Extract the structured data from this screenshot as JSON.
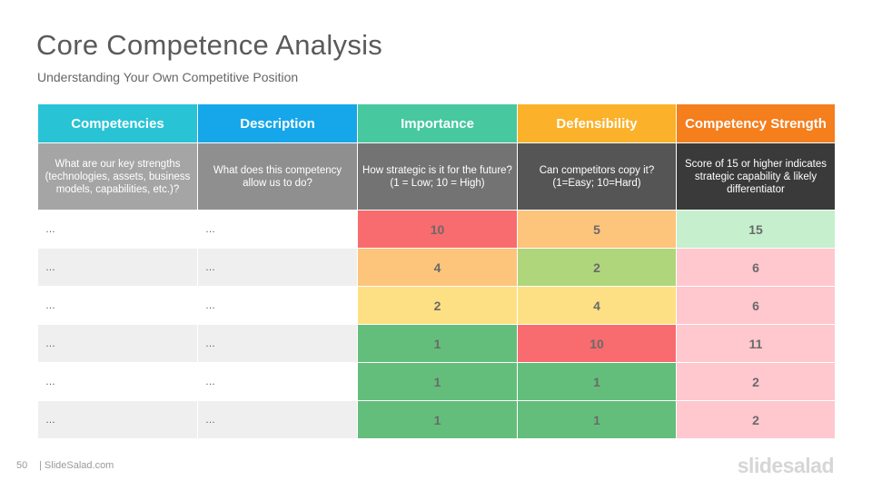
{
  "title": "Core Competence Analysis",
  "subtitle": "Understanding Your Own Competitive Position",
  "columns": [
    {
      "label": "Competencies",
      "color": "#29c3d6",
      "desc": "What are our key strengths (technologies, assets, business models, capabilities, etc.)?",
      "desc_color": "#a5a5a5"
    },
    {
      "label": "Description",
      "color": "#16a7ea",
      "desc": "What does this competency allow us to do?",
      "desc_color": "#8f8f8f"
    },
    {
      "label": "Importance",
      "color": "#47c89f",
      "desc": "How strategic is it for the future?\n(1 = Low; 10 = High)",
      "desc_color": "#737373"
    },
    {
      "label": "Defensibility",
      "color": "#fbb129",
      "desc": "Can competitors  copy it?\n(1=Easy; 10=Hard)",
      "desc_color": "#555555"
    },
    {
      "label": "Competency Strength",
      "color": "#f57e1d",
      "desc": "Score of 15 or higher indicates strategic capability & likely differentiator",
      "desc_color": "#3a3a3a"
    }
  ],
  "rows": [
    {
      "competency": "…",
      "description": "…",
      "importance": "10",
      "importance_color": "#f86b6e",
      "defensibility": "5",
      "defensibility_color": "#fdc47c",
      "strength": "15",
      "strength_color": "#c6efce"
    },
    {
      "competency": "…",
      "description": "…",
      "importance": "4",
      "importance_color": "#fdc47c",
      "defensibility": "2",
      "defensibility_color": "#b0d67c",
      "strength": "6",
      "strength_color": "#ffc7ce"
    },
    {
      "competency": "…",
      "description": "…",
      "importance": "2",
      "importance_color": "#fee084",
      "defensibility": "4",
      "defensibility_color": "#fee084",
      "strength": "6",
      "strength_color": "#ffc7ce"
    },
    {
      "competency": "…",
      "description": "…",
      "importance": "1",
      "importance_color": "#63be7b",
      "defensibility": "10",
      "defensibility_color": "#f86b6e",
      "strength": "11",
      "strength_color": "#ffc7ce"
    },
    {
      "competency": "…",
      "description": "…",
      "importance": "1",
      "importance_color": "#63be7b",
      "defensibility": "1",
      "defensibility_color": "#63be7b",
      "strength": "2",
      "strength_color": "#ffc7ce"
    },
    {
      "competency": "…",
      "description": "…",
      "importance": "1",
      "importance_color": "#63be7b",
      "defensibility": "1",
      "defensibility_color": "#63be7b",
      "strength": "2",
      "strength_color": "#ffc7ce"
    }
  ],
  "row_shades": [
    "#ffffff",
    "#efefef"
  ],
  "footer": {
    "page": "50",
    "site": "| SlideSalad.com",
    "logo": "slidesalad"
  }
}
